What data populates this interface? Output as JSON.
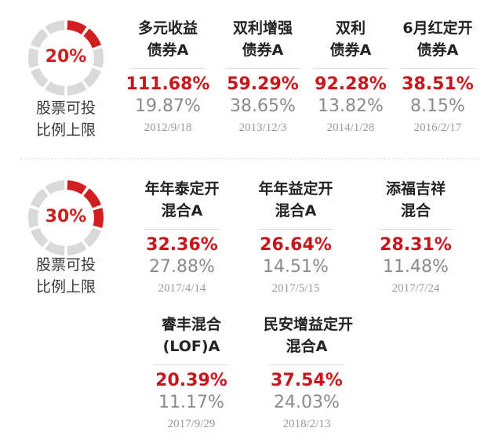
{
  "sections": [
    {
      "gauge_percent": "20%",
      "gauge_value": 0.2,
      "label_lines": [
        "股票可投",
        "比例上限"
      ],
      "funds": [
        {
          "name_lines": [
            "多元收益",
            "债券A"
          ],
          "return_a": "111.68%",
          "return_b": "19.87%",
          "date": "2012/9/18"
        },
        {
          "name_lines": [
            "双利增强",
            "债券A"
          ],
          "return_a": "59.29%",
          "return_b": "38.65%",
          "date": "2013/12/3"
        },
        {
          "name_lines": [
            "双利",
            "债券A"
          ],
          "return_a": "92.28%",
          "return_b": "13.82%",
          "date": "2014/1/28"
        },
        {
          "name_lines": [
            "6月红定开",
            "债券A"
          ],
          "return_a": "38.51%",
          "return_b": "8.15%",
          "date": "2016/2/17"
        }
      ]
    },
    {
      "gauge_percent": "30%",
      "gauge_value": 0.3,
      "label_lines": [
        "股票可投",
        "比例上限"
      ],
      "funds": [
        {
          "name_lines": [
            "年年泰定开",
            "混合A"
          ],
          "return_a": "32.36%",
          "return_b": "27.88%",
          "date": "2017/4/14"
        },
        {
          "name_lines": [
            "年年益定开",
            "混合A"
          ],
          "return_a": "26.64%",
          "return_b": "14.51%",
          "date": "2017/5/15"
        },
        {
          "name_lines": [
            "添福吉祥",
            "混合"
          ],
          "return_a": "28.31%",
          "return_b": "11.48%",
          "date": "2017/7/24"
        },
        {
          "name_lines": [
            "睿丰混合",
            "(LOF)A"
          ],
          "return_a": "20.39%",
          "return_b": "11.17%",
          "date": "2017/9/29"
        },
        {
          "name_lines": [
            "民安增益定开",
            "混合A"
          ],
          "return_a": "37.54%",
          "return_b": "24.03%",
          "date": "2018/2/13"
        }
      ]
    }
  ],
  "colors": {
    "accent": "#d11f1f",
    "gauge_track": "#d9d9d9",
    "muted_text": "#8a8a8a"
  }
}
